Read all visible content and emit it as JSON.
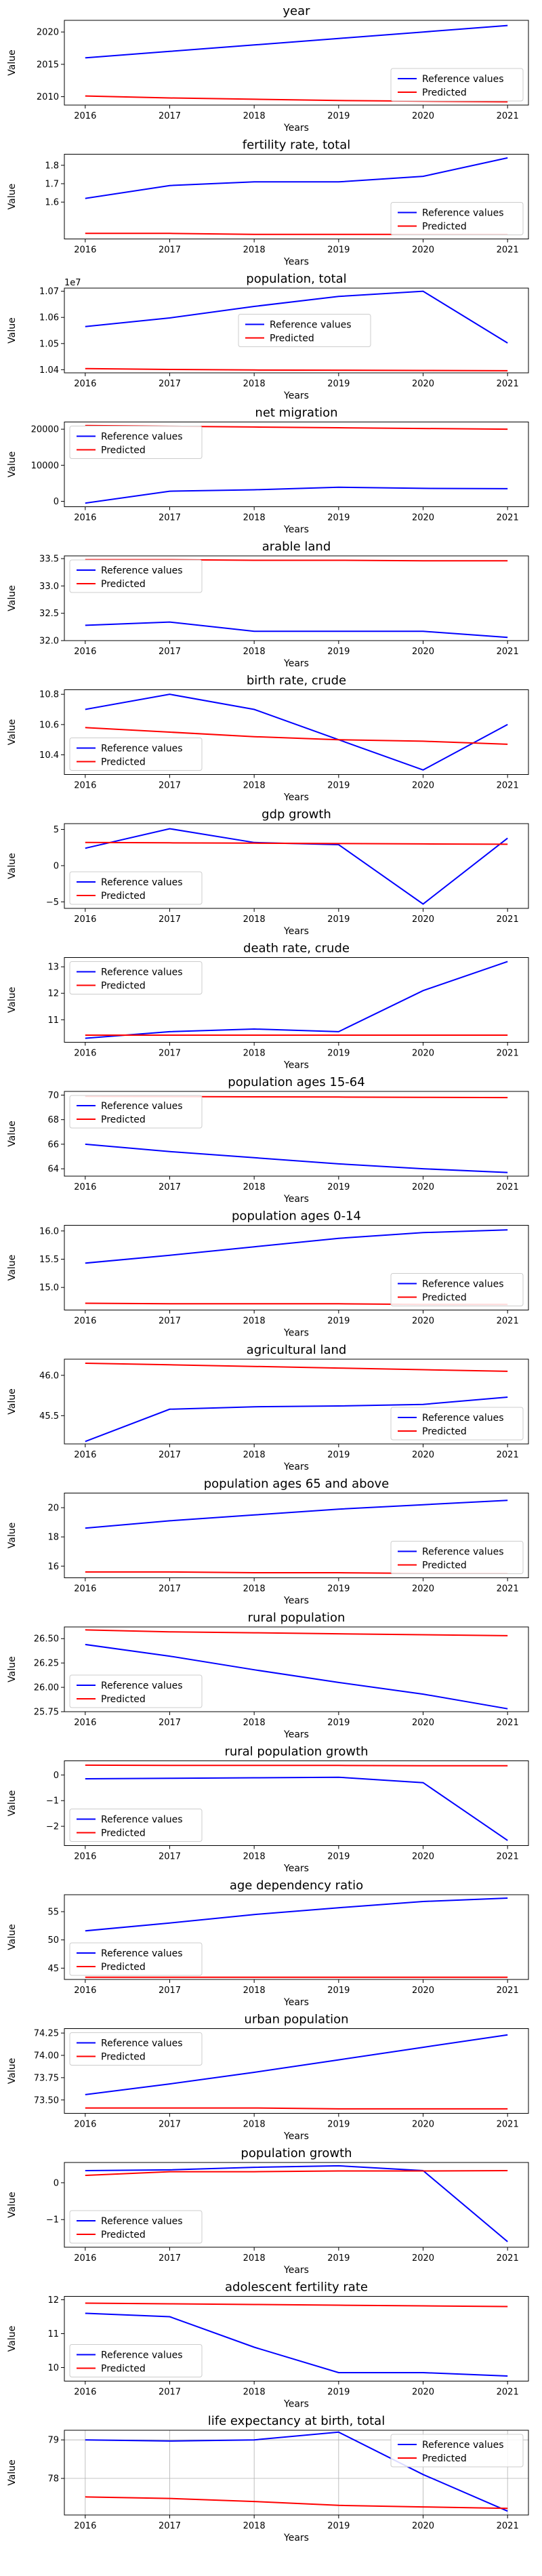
{
  "series_names": [
    "Reference values",
    "Predicted"
  ],
  "colors": {
    "reference": "#0000ff",
    "predicted": "#ff0000"
  },
  "chart_data": [
    {
      "type": "line",
      "title": "year",
      "xlabel": "Years",
      "ylabel": "Value",
      "x": [
        2016,
        2017,
        2018,
        2019,
        2020,
        2021
      ],
      "ylim": [
        2008.7,
        2021.8
      ],
      "yticks": [
        {
          "v": 2010,
          "label": "2010"
        },
        {
          "v": 2015,
          "label": "2015"
        },
        {
          "v": 2020,
          "label": "2020"
        }
      ],
      "legend": "lower right",
      "series": [
        {
          "name": "Reference values",
          "values": [
            2016,
            2017,
            2018,
            2019,
            2020,
            2021
          ]
        },
        {
          "name": "Predicted",
          "values": [
            2010.1,
            2009.8,
            2009.6,
            2009.4,
            2009.3,
            2009.2
          ]
        }
      ]
    },
    {
      "type": "line",
      "title": "fertility rate, total",
      "xlabel": "Years",
      "ylabel": "Value",
      "x": [
        2016,
        2017,
        2018,
        2019,
        2020,
        2021
      ],
      "ylim": [
        1.4,
        1.86
      ],
      "yticks": [
        {
          "v": 1.6,
          "label": "1.6"
        },
        {
          "v": 1.7,
          "label": "1.7"
        },
        {
          "v": 1.8,
          "label": "1.8"
        }
      ],
      "legend": "lower right",
      "series": [
        {
          "name": "Reference values",
          "values": [
            1.62,
            1.69,
            1.71,
            1.71,
            1.74,
            1.84
          ]
        },
        {
          "name": "Predicted",
          "values": [
            1.43,
            1.43,
            1.425,
            1.425,
            1.425,
            1.425
          ]
        }
      ]
    },
    {
      "type": "line",
      "title": "population, total",
      "xlabel": "Years",
      "ylabel": "Value",
      "x": [
        2016,
        2017,
        2018,
        2019,
        2020,
        2021
      ],
      "ylim": [
        10.388,
        10.712
      ],
      "yticks": [
        {
          "v": 10.4,
          "label": "1.04"
        },
        {
          "v": 10.5,
          "label": "1.05"
        },
        {
          "v": 10.6,
          "label": "1.06"
        },
        {
          "v": 10.7,
          "label": "1.07"
        }
      ],
      "offset_label": "1e7",
      "legend": "center",
      "series": [
        {
          "name": "Reference values",
          "values": [
            10.565,
            10.598,
            10.642,
            10.68,
            10.7,
            10.502
          ]
        },
        {
          "name": "Predicted",
          "values": [
            10.404,
            10.401,
            10.399,
            10.398,
            10.397,
            10.396
          ]
        }
      ]
    },
    {
      "type": "line",
      "title": "net migration",
      "xlabel": "Years",
      "ylabel": "Value",
      "x": [
        2016,
        2017,
        2018,
        2019,
        2020,
        2021
      ],
      "ylim": [
        -1500,
        22000
      ],
      "yticks": [
        {
          "v": 0,
          "label": "0"
        },
        {
          "v": 10000,
          "label": "10000"
        },
        {
          "v": 20000,
          "label": "20000"
        }
      ],
      "legend": "upper left",
      "series": [
        {
          "name": "Reference values",
          "values": [
            -500,
            2800,
            3200,
            3900,
            3600,
            3500
          ]
        },
        {
          "name": "Predicted",
          "values": [
            21000,
            20800,
            20600,
            20400,
            20200,
            20000
          ]
        }
      ]
    },
    {
      "type": "line",
      "title": "arable land",
      "xlabel": "Years",
      "ylabel": "Value",
      "x": [
        2016,
        2017,
        2018,
        2019,
        2020,
        2021
      ],
      "ylim": [
        32.0,
        33.55
      ],
      "yticks": [
        {
          "v": 32.0,
          "label": "32.0"
        },
        {
          "v": 32.5,
          "label": "32.5"
        },
        {
          "v": 33.0,
          "label": "33.0"
        },
        {
          "v": 33.5,
          "label": "33.5"
        }
      ],
      "legend": "upper left",
      "series": [
        {
          "name": "Reference values",
          "values": [
            32.28,
            32.34,
            32.17,
            32.17,
            32.17,
            32.06
          ]
        },
        {
          "name": "Predicted",
          "values": [
            33.48,
            33.48,
            33.47,
            33.47,
            33.46,
            33.46
          ]
        }
      ]
    },
    {
      "type": "line",
      "title": "birth rate, crude",
      "xlabel": "Years",
      "ylabel": "Value",
      "x": [
        2016,
        2017,
        2018,
        2019,
        2020,
        2021
      ],
      "ylim": [
        10.27,
        10.83
      ],
      "yticks": [
        {
          "v": 10.4,
          "label": "10.4"
        },
        {
          "v": 10.6,
          "label": "10.6"
        },
        {
          "v": 10.8,
          "label": "10.8"
        }
      ],
      "legend": "lower left",
      "series": [
        {
          "name": "Reference values",
          "values": [
            10.7,
            10.8,
            10.7,
            10.5,
            10.3,
            10.6
          ]
        },
        {
          "name": "Predicted",
          "values": [
            10.58,
            10.55,
            10.52,
            10.5,
            10.49,
            10.47
          ]
        }
      ]
    },
    {
      "type": "line",
      "title": "gdp growth",
      "xlabel": "Years",
      "ylabel": "Value",
      "x": [
        2016,
        2017,
        2018,
        2019,
        2020,
        2021
      ],
      "ylim": [
        -5.9,
        5.8
      ],
      "yticks": [
        {
          "v": -5,
          "label": "−5"
        },
        {
          "v": 0,
          "label": "0"
        },
        {
          "v": 5,
          "label": "5"
        }
      ],
      "legend": "lower left",
      "series": [
        {
          "name": "Reference values",
          "values": [
            2.4,
            5.1,
            3.2,
            2.9,
            -5.3,
            3.8
          ]
        },
        {
          "name": "Predicted",
          "values": [
            3.2,
            3.15,
            3.1,
            3.05,
            3.0,
            2.95
          ]
        }
      ]
    },
    {
      "type": "line",
      "title": "death rate, crude",
      "xlabel": "Years",
      "ylabel": "Value",
      "x": [
        2016,
        2017,
        2018,
        2019,
        2020,
        2021
      ],
      "ylim": [
        10.15,
        13.35
      ],
      "yticks": [
        {
          "v": 11,
          "label": "11"
        },
        {
          "v": 12,
          "label": "12"
        },
        {
          "v": 13,
          "label": "13"
        }
      ],
      "legend": "upper left",
      "series": [
        {
          "name": "Reference values",
          "values": [
            10.3,
            10.55,
            10.65,
            10.55,
            12.1,
            13.2
          ]
        },
        {
          "name": "Predicted",
          "values": [
            10.42,
            10.42,
            10.42,
            10.42,
            10.42,
            10.42
          ]
        }
      ]
    },
    {
      "type": "line",
      "title": "population ages 15-64",
      "xlabel": "Years",
      "ylabel": "Value",
      "x": [
        2016,
        2017,
        2018,
        2019,
        2020,
        2021
      ],
      "ylim": [
        63.4,
        70.3
      ],
      "yticks": [
        {
          "v": 64,
          "label": "64"
        },
        {
          "v": 66,
          "label": "66"
        },
        {
          "v": 68,
          "label": "68"
        },
        {
          "v": 70,
          "label": "70"
        }
      ],
      "legend": "upper left",
      "series": [
        {
          "name": "Reference values",
          "values": [
            66.0,
            65.4,
            64.9,
            64.4,
            64.0,
            63.7
          ]
        },
        {
          "name": "Predicted",
          "values": [
            69.9,
            69.88,
            69.86,
            69.84,
            69.82,
            69.8
          ]
        }
      ]
    },
    {
      "type": "line",
      "title": "population ages 0-14",
      "xlabel": "Years",
      "ylabel": "Value",
      "x": [
        2016,
        2017,
        2018,
        2019,
        2020,
        2021
      ],
      "ylim": [
        14.6,
        16.1
      ],
      "yticks": [
        {
          "v": 15.0,
          "label": "15.0"
        },
        {
          "v": 15.5,
          "label": "15.5"
        },
        {
          "v": 16.0,
          "label": "16.0"
        }
      ],
      "legend": "lower right",
      "series": [
        {
          "name": "Reference values",
          "values": [
            15.43,
            15.57,
            15.72,
            15.87,
            15.97,
            16.02
          ]
        },
        {
          "name": "Predicted",
          "values": [
            14.72,
            14.71,
            14.71,
            14.71,
            14.7,
            14.7
          ]
        }
      ]
    },
    {
      "type": "line",
      "title": "agricultural land",
      "xlabel": "Years",
      "ylabel": "Value",
      "x": [
        2016,
        2017,
        2018,
        2019,
        2020,
        2021
      ],
      "ylim": [
        45.15,
        46.2
      ],
      "yticks": [
        {
          "v": 45.5,
          "label": "45.5"
        },
        {
          "v": 46.0,
          "label": "46.0"
        }
      ],
      "legend": "lower right",
      "series": [
        {
          "name": "Reference values",
          "values": [
            45.18,
            45.58,
            45.61,
            45.62,
            45.64,
            45.73
          ]
        },
        {
          "name": "Predicted",
          "values": [
            46.15,
            46.13,
            46.11,
            46.09,
            46.07,
            46.05
          ]
        }
      ]
    },
    {
      "type": "line",
      "title": "population ages 65 and above",
      "xlabel": "Years",
      "ylabel": "Value",
      "x": [
        2016,
        2017,
        2018,
        2019,
        2020,
        2021
      ],
      "ylim": [
        15.2,
        21.0
      ],
      "yticks": [
        {
          "v": 16,
          "label": "16"
        },
        {
          "v": 18,
          "label": "18"
        },
        {
          "v": 20,
          "label": "20"
        }
      ],
      "legend": "lower right",
      "series": [
        {
          "name": "Reference values",
          "values": [
            18.6,
            19.1,
            19.5,
            19.9,
            20.2,
            20.5
          ]
        },
        {
          "name": "Predicted",
          "values": [
            15.6,
            15.6,
            15.55,
            15.55,
            15.5,
            15.5
          ]
        }
      ]
    },
    {
      "type": "line",
      "title": "rural population",
      "xlabel": "Years",
      "ylabel": "Value",
      "x": [
        2016,
        2017,
        2018,
        2019,
        2020,
        2021
      ],
      "ylim": [
        25.75,
        26.62
      ],
      "yticks": [
        {
          "v": 25.75,
          "label": "25.75"
        },
        {
          "v": 26.0,
          "label": "26.00"
        },
        {
          "v": 26.25,
          "label": "26.25"
        },
        {
          "v": 26.5,
          "label": "26.50"
        }
      ],
      "legend": "lower left",
      "series": [
        {
          "name": "Reference values",
          "values": [
            26.44,
            26.32,
            26.18,
            26.05,
            25.93,
            25.78
          ]
        },
        {
          "name": "Predicted",
          "values": [
            26.59,
            26.57,
            26.56,
            26.55,
            26.54,
            26.53
          ]
        }
      ]
    },
    {
      "type": "line",
      "title": "rural population growth",
      "xlabel": "Years",
      "ylabel": "Value",
      "x": [
        2016,
        2017,
        2018,
        2019,
        2020,
        2021
      ],
      "ylim": [
        -2.75,
        0.55
      ],
      "yticks": [
        {
          "v": -2,
          "label": "−2"
        },
        {
          "v": -1,
          "label": "−1"
        },
        {
          "v": 0,
          "label": "0"
        }
      ],
      "legend": "lower left",
      "series": [
        {
          "name": "Reference values",
          "values": [
            -0.15,
            -0.13,
            -0.11,
            -0.09,
            -0.3,
            -2.55
          ]
        },
        {
          "name": "Predicted",
          "values": [
            0.38,
            0.37,
            0.37,
            0.37,
            0.36,
            0.36
          ]
        }
      ]
    },
    {
      "type": "line",
      "title": "age dependency ratio",
      "xlabel": "Years",
      "ylabel": "Value",
      "x": [
        2016,
        2017,
        2018,
        2019,
        2020,
        2021
      ],
      "ylim": [
        43.0,
        58.0
      ],
      "yticks": [
        {
          "v": 45,
          "label": "45"
        },
        {
          "v": 50,
          "label": "50"
        },
        {
          "v": 55,
          "label": "55"
        }
      ],
      "legend": "lower left",
      "series": [
        {
          "name": "Reference values",
          "values": [
            51.6,
            53.0,
            54.5,
            55.7,
            56.8,
            57.4
          ]
        },
        {
          "name": "Predicted",
          "values": [
            43.4,
            43.4,
            43.4,
            43.4,
            43.4,
            43.4
          ]
        }
      ]
    },
    {
      "type": "line",
      "title": "urban population",
      "xlabel": "Years",
      "ylabel": "Value",
      "x": [
        2016,
        2017,
        2018,
        2019,
        2020,
        2021
      ],
      "ylim": [
        73.35,
        74.3
      ],
      "yticks": [
        {
          "v": 73.5,
          "label": "73.50"
        },
        {
          "v": 73.75,
          "label": "73.75"
        },
        {
          "v": 74.0,
          "label": "74.00"
        },
        {
          "v": 74.25,
          "label": "74.25"
        }
      ],
      "legend": "upper left",
      "series": [
        {
          "name": "Reference values",
          "values": [
            73.56,
            73.68,
            73.81,
            73.95,
            74.09,
            74.23
          ]
        },
        {
          "name": "Predicted",
          "values": [
            73.41,
            73.41,
            73.41,
            73.4,
            73.4,
            73.4
          ]
        }
      ]
    },
    {
      "type": "line",
      "title": "population growth",
      "xlabel": "Years",
      "ylabel": "Value",
      "x": [
        2016,
        2017,
        2018,
        2019,
        2020,
        2021
      ],
      "ylim": [
        -1.75,
        0.55
      ],
      "yticks": [
        {
          "v": -1,
          "label": "−1"
        },
        {
          "v": 0,
          "label": "0"
        }
      ],
      "legend": "lower left",
      "series": [
        {
          "name": "Reference values",
          "values": [
            0.33,
            0.35,
            0.42,
            0.46,
            0.33,
            -1.6
          ]
        },
        {
          "name": "Predicted",
          "values": [
            0.2,
            0.3,
            0.3,
            0.32,
            0.32,
            0.33
          ]
        }
      ]
    },
    {
      "type": "line",
      "title": "adolescent fertility rate",
      "xlabel": "Years",
      "ylabel": "Value",
      "x": [
        2016,
        2017,
        2018,
        2019,
        2020,
        2021
      ],
      "ylim": [
        9.6,
        12.1
      ],
      "yticks": [
        {
          "v": 10,
          "label": "10"
        },
        {
          "v": 11,
          "label": "11"
        },
        {
          "v": 12,
          "label": "12"
        }
      ],
      "legend": "lower left",
      "series": [
        {
          "name": "Reference values",
          "values": [
            11.6,
            11.5,
            10.6,
            9.85,
            9.85,
            9.75
          ]
        },
        {
          "name": "Predicted",
          "values": [
            11.9,
            11.88,
            11.86,
            11.84,
            11.82,
            11.8
          ]
        }
      ]
    },
    {
      "type": "line",
      "title": "life expectancy at birth, total",
      "xlabel": "Years",
      "ylabel": "Value",
      "x": [
        2016,
        2017,
        2018,
        2019,
        2020,
        2021
      ],
      "ylim": [
        77.05,
        79.25
      ],
      "yticks": [
        {
          "v": 78,
          "label": "78"
        },
        {
          "v": 79,
          "label": "79"
        }
      ],
      "legend": "upper right",
      "grid": true,
      "series": [
        {
          "name": "Reference values",
          "values": [
            79.0,
            78.97,
            79.0,
            79.2,
            78.1,
            77.15
          ]
        },
        {
          "name": "Predicted",
          "values": [
            77.52,
            77.48,
            77.4,
            77.3,
            77.26,
            77.22
          ]
        }
      ]
    }
  ]
}
